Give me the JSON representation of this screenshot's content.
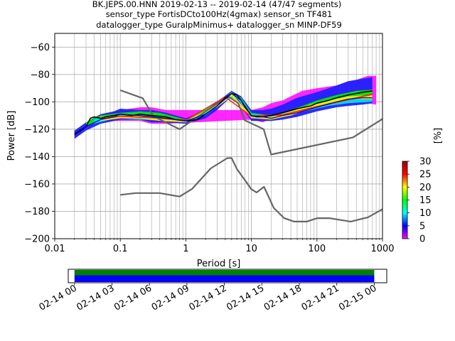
{
  "title_lines": [
    "BK.JEPS.00.HNN   2019-02-13 -- 2019-02-14  (47/47 segments)",
    "sensor_type FortisDCto100Hz(4gmax) sensor_sn TF481",
    "datalogger_type GuralpMinimus+ datalogger_sn MINP-DF59"
  ],
  "chart_data": [
    {
      "type": "line",
      "xlabel": "Period [s]",
      "ylabel": "Power [dB]",
      "x_scale": "log",
      "xlim": [
        0.01,
        1000
      ],
      "ylim": [
        -200,
        -50
      ],
      "x_ticks": [
        {
          "value": 0.01,
          "label": "0.01"
        },
        {
          "value": 0.1,
          "label": "0.1"
        },
        {
          "value": 1,
          "label": "1"
        },
        {
          "value": 10,
          "label": "10"
        },
        {
          "value": 100,
          "label": "100"
        },
        {
          "value": 1000,
          "label": "1000"
        }
      ],
      "y_ticks": [
        {
          "value": -60,
          "label": "−60"
        },
        {
          "value": -80,
          "label": "−80"
        },
        {
          "value": -100,
          "label": "−100"
        },
        {
          "value": -120,
          "label": "−120"
        },
        {
          "value": -140,
          "label": "−140"
        },
        {
          "value": -160,
          "label": "−160"
        },
        {
          "value": -180,
          "label": "−180"
        },
        {
          "value": -200,
          "label": "−200"
        }
      ],
      "grid": true,
      "series": [
        {
          "role": "NHNM",
          "color": "#666666",
          "x": [
            0.1,
            0.22,
            0.32,
            0.8,
            3.8,
            4.6,
            6.3,
            7.9,
            15.4,
            20,
            354.8,
            1000
          ],
          "y": [
            -91.5,
            -97.4,
            -110.5,
            -120,
            -98,
            -96.5,
            -101,
            -113.5,
            -120,
            -138.5,
            -126,
            -112.5
          ]
        },
        {
          "role": "NLNM",
          "color": "#666666",
          "x": [
            0.1,
            0.17,
            0.4,
            0.8,
            1.24,
            2.4,
            4.3,
            5,
            6,
            10,
            12,
            15.6,
            21.9,
            31.6,
            45,
            70,
            101,
            154,
            328,
            600,
            1000
          ],
          "y": [
            -168,
            -166.7,
            -166.7,
            -169.2,
            -163.7,
            -148.6,
            -141.1,
            -141.1,
            -149,
            -163.8,
            -166.2,
            -162.1,
            -177.5,
            -185,
            -187.5,
            -187.5,
            -185,
            -185,
            -187.5,
            -184.4,
            -178.4
          ]
        },
        {
          "role": "mean",
          "color": "#000000",
          "x": [
            0.02,
            0.025,
            0.03,
            0.035,
            0.04,
            0.05,
            0.06,
            0.08,
            0.1,
            0.15,
            0.2,
            0.3,
            0.5,
            0.7,
            1,
            1.5,
            2,
            3,
            4,
            5,
            6,
            7,
            8,
            10,
            12,
            15,
            20,
            30,
            50,
            80,
            100,
            150,
            200,
            300,
            500,
            700
          ],
          "y": [
            -124,
            -121,
            -118,
            -112,
            -111,
            -112,
            -111,
            -110,
            -109,
            -110,
            -109,
            -110,
            -111,
            -113,
            -114,
            -113,
            -109,
            -103,
            -97,
            -94,
            -95,
            -99,
            -104,
            -110,
            -111,
            -111,
            -110,
            -108,
            -105,
            -103,
            -101,
            -99,
            -97,
            -95,
            -93,
            -92
          ]
        },
        {
          "role": "mode",
          "color": "#0000cc",
          "x": [
            0.02,
            0.03,
            0.05,
            0.08,
            0.1,
            0.2,
            0.3,
            0.5,
            1,
            2,
            3,
            5,
            7,
            10,
            15,
            20,
            30,
            50,
            100,
            200,
            300,
            500,
            700
          ],
          "y": [
            -123,
            -118,
            -113,
            -111,
            -109,
            -110,
            -111,
            -112,
            -114,
            -109,
            -103,
            -94,
            -99,
            -110,
            -111,
            -112,
            -110,
            -108,
            -104,
            -100,
            -98,
            -97,
            -97
          ]
        }
      ],
      "psd_bands": [
        {
          "x": [
            0.02,
            0.03,
            0.05,
            0.08,
            0.1,
            0.2,
            0.3,
            0.5,
            1,
            2,
            3,
            5,
            7,
            10,
            15,
            20,
            30,
            50,
            100,
            200,
            300,
            500,
            700
          ],
          "y_low": [
            -127,
            -121,
            -116,
            -114,
            -113,
            -113,
            -115,
            -115,
            -116,
            -112,
            -106,
            -96,
            -103,
            -114,
            -114,
            -114,
            -113,
            -111,
            -107,
            -104,
            -103,
            -102,
            -101
          ],
          "y_high": [
            -121,
            -115,
            -109,
            -107,
            -105,
            -106,
            -106,
            -108,
            -112,
            -106,
            -100,
            -92,
            -96,
            -106,
            -106,
            -105,
            -102,
            -97,
            -93,
            -88,
            -85,
            -83,
            -82
          ],
          "color": "#2020ff"
        },
        {
          "x": [
            0.03,
            0.05,
            0.1,
            0.2,
            0.4,
            0.7,
            1,
            3,
            5,
            7,
            10,
            20,
            40,
            60,
            100,
            200,
            400,
            700
          ],
          "y_low": [
            -118,
            -114,
            -112,
            -112,
            -113,
            -114,
            -115,
            -104,
            -95,
            -100,
            -110,
            -112,
            -109,
            -106,
            -103,
            -99,
            -96,
            -95
          ],
          "y_high": [
            -115,
            -110,
            -108,
            -107,
            -108,
            -111,
            -113,
            -101,
            -93,
            -97,
            -108,
            -110,
            -106,
            -103,
            -99,
            -95,
            -92,
            -91
          ],
          "color": "#00ee00"
        },
        {
          "x": [
            0.04,
            0.07,
            0.1,
            0.2,
            0.5,
            1,
            2,
            4,
            6,
            10,
            20,
            40,
            80,
            150,
            300,
            700
          ],
          "y_low": [
            -116,
            -113,
            -112,
            -113,
            -114,
            -114,
            -110,
            -99,
            -97,
            -111,
            -112,
            -109,
            -106,
            -103,
            -101,
            -100
          ],
          "y_high": [
            -113,
            -110,
            -109,
            -109,
            -112,
            -113,
            -108,
            -97,
            -95,
            -109,
            -110,
            -107,
            -104,
            -101,
            -98,
            -97
          ],
          "color": "#00e0e0"
        },
        {
          "x": [
            0.05,
            0.1,
            0.2,
            0.4,
            1,
            3,
            5,
            10,
            20,
            40,
            80,
            150,
            300,
            700
          ],
          "y_low": [
            -114,
            -112,
            -112,
            -114,
            -115,
            -104,
            -96,
            -112,
            -113,
            -110,
            -105,
            -101,
            -98,
            -98
          ],
          "y_high": [
            -111,
            -110,
            -110,
            -112,
            -114,
            -102,
            -94,
            -110,
            -111,
            -107,
            -102,
            -99,
            -96,
            -95
          ],
          "color": "#ffee00"
        },
        {
          "x": [
            0.05,
            0.1,
            0.3,
            1,
            4,
            10,
            30,
            100,
            700
          ],
          "y_low": [
            -113,
            -111,
            -112,
            -114,
            -97,
            -111,
            -110,
            -104,
            -95
          ],
          "y_high": [
            -112,
            -110,
            -111,
            -113,
            -96,
            -110,
            -109,
            -103,
            -94
          ],
          "color": "#ff2000"
        }
      ],
      "outlier_band": {
        "x": [
          0.06,
          0.1,
          0.2,
          0.3,
          0.5,
          10,
          15,
          20,
          30,
          40,
          60,
          100,
          200,
          300,
          400,
          600,
          800
        ],
        "y_low": [
          -114,
          -114,
          -114,
          -116,
          -116,
          -113,
          -115,
          -112,
          -110,
          -108,
          -104,
          -102,
          -97,
          -95,
          -96,
          -101,
          -102
        ],
        "y_high": [
          -109,
          -106,
          -104,
          -104,
          -106,
          -106,
          -104,
          -101,
          -99,
          -96,
          -92,
          -90,
          -88,
          -85,
          -84,
          -81,
          -81
        ],
        "color": "#ff00ff"
      }
    },
    {
      "type": "heatmap",
      "label": "[%]",
      "colormap": [
        "#ff00ff",
        "#0000ff",
        "#00ffff",
        "#00ff00",
        "#ffff00",
        "#ff0000",
        "#990000"
      ],
      "ticks": [
        {
          "value": 0,
          "label": "0"
        },
        {
          "value": 5,
          "label": "5"
        },
        {
          "value": 10,
          "label": "10"
        },
        {
          "value": 15,
          "label": "15"
        },
        {
          "value": 20,
          "label": "20"
        },
        {
          "value": 25,
          "label": "25"
        },
        {
          "value": 30,
          "label": "30"
        }
      ],
      "range": [
        0,
        30
      ]
    },
    {
      "type": "bar",
      "xlim_hours": [
        -0.5,
        25
      ],
      "bars": [
        {
          "start_hour": 0,
          "end_hour": 24,
          "color": "#008000",
          "row": "top"
        },
        {
          "start_hour": 0,
          "end_hour": 24,
          "color": "#0000ff",
          "row": "bottom"
        }
      ],
      "ticks": [
        {
          "hour": 0,
          "label": "02-14 00"
        },
        {
          "hour": 3,
          "label": "02-14 03"
        },
        {
          "hour": 6,
          "label": "02-14 06"
        },
        {
          "hour": 9,
          "label": "02-14 09"
        },
        {
          "hour": 12,
          "label": "02-14 12"
        },
        {
          "hour": 15,
          "label": "02-14 15"
        },
        {
          "hour": 18,
          "label": "02-14 18"
        },
        {
          "hour": 21,
          "label": "02-14 21"
        },
        {
          "hour": 24,
          "label": "02-15 00"
        }
      ]
    }
  ]
}
